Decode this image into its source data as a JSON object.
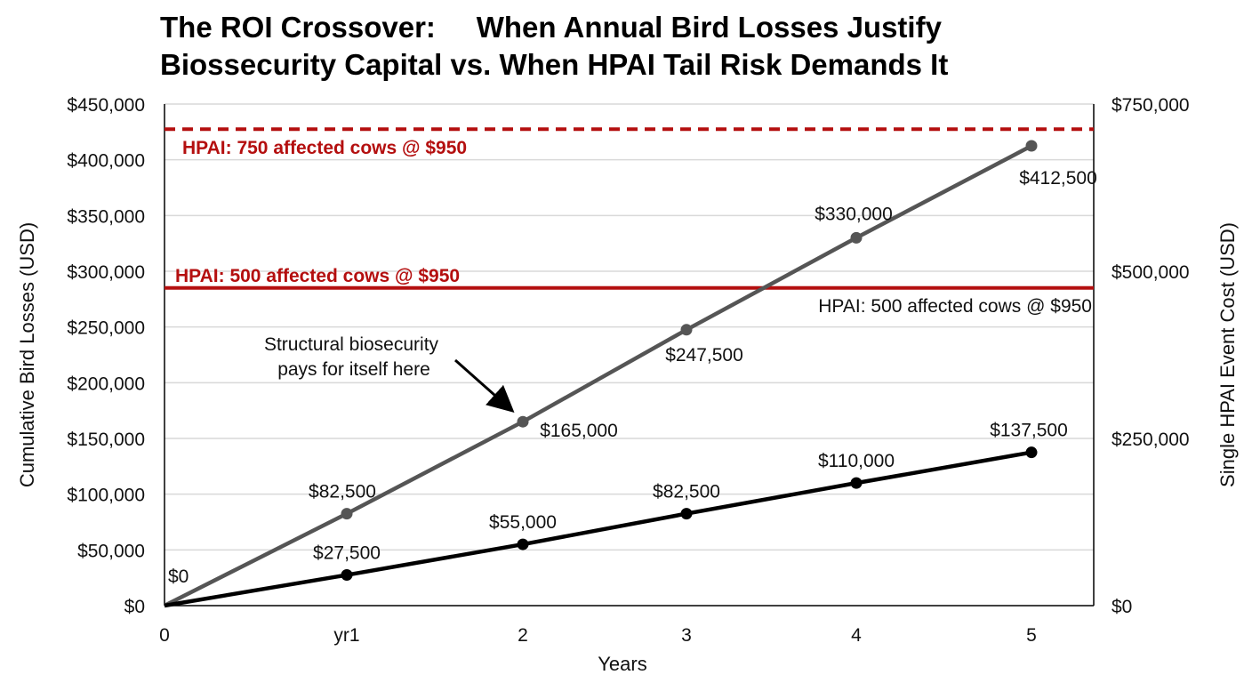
{
  "chart_data": {
    "type": "line",
    "title_lines": [
      "The ROI Crossover:     When Annual Bird Losses Justify",
      "Biossecurity Capital vs. When HPAI Tail Risk Demands It"
    ],
    "xlabel": "Years",
    "ylabel": "Cumulative Bird Losses (USD)",
    "y2label": "Single HPAI Event Cost (USD)",
    "x": [
      0,
      1,
      2,
      3,
      4,
      5
    ],
    "x_tick_labels": [
      "0",
      "yr1",
      "2",
      "3",
      "4",
      "5"
    ],
    "ylim": [
      0,
      450000
    ],
    "y_ticks": [
      0,
      50000,
      100000,
      150000,
      200000,
      250000,
      300000,
      350000,
      400000,
      450000
    ],
    "y_tick_labels": [
      "$0",
      "$50,000",
      "$100,000",
      "$150,000",
      "$200,000",
      "$250,000",
      "$300,000",
      "$350,000",
      "$400,000",
      "$450,000"
    ],
    "y2lim": [
      0,
      750000
    ],
    "y2_ticks": [
      0,
      250000,
      500000,
      750000
    ],
    "y2_tick_labels": [
      "$0",
      "$250,000",
      "$500,000",
      "$750,000"
    ],
    "grid": true,
    "series": [
      {
        "values": [
          0,
          82500,
          165000,
          247500,
          330000,
          412500
        ],
        "color": "#555555",
        "labels": [
          "$0",
          "$82,500",
          "$165,000",
          "$247,500",
          "$330,000",
          "$412,500"
        ]
      },
      {
        "values": [
          0,
          27500,
          55000,
          82500,
          110000,
          137500
        ],
        "color": "#000000",
        "labels": [
          "",
          "$27,500",
          "$55,000",
          "$82,500",
          "$110,000",
          "$137,500"
        ]
      }
    ],
    "reference_lines": [
      {
        "axis": "right",
        "value": 712500,
        "style": "dashed",
        "color": "#b40f0f",
        "label": "HPAI: 750 affected cows @ $950"
      },
      {
        "axis": "right",
        "value": 475000,
        "style": "solid",
        "color": "#b40f0f",
        "label": "HPAI: 500 affected cows @ $950",
        "label2": "HPAI: 500 affected cows @ $950"
      }
    ],
    "annotation": {
      "lines": [
        "Structural biosecurity",
        "pays for itself here"
      ],
      "points_to_x": 2,
      "points_to_series": 0
    }
  }
}
